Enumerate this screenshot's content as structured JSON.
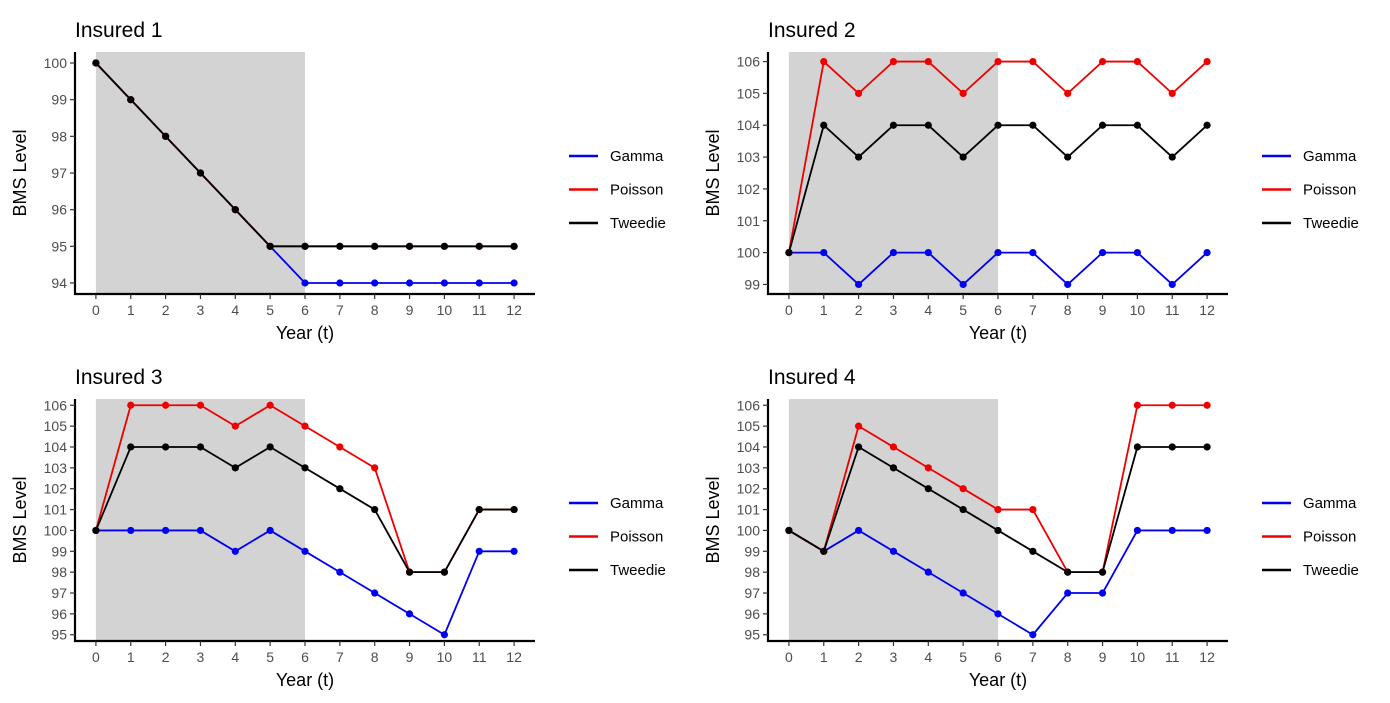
{
  "colors": {
    "Gamma": "#0000ee",
    "Poisson": "#ee0000",
    "Tweedie": "#000000",
    "shade": "#d3d3d3"
  },
  "legend": [
    "Gamma",
    "Poisson",
    "Tweedie"
  ],
  "chart_data": [
    {
      "type": "line",
      "title": "Insured 1",
      "xlabel": "Year (t)",
      "ylabel": "BMS Level",
      "x": [
        0,
        1,
        2,
        3,
        4,
        5,
        6,
        7,
        8,
        9,
        10,
        11,
        12
      ],
      "xlim": [
        0,
        12
      ],
      "ylim": [
        94,
        100
      ],
      "yticks": [
        94,
        95,
        96,
        97,
        98,
        99,
        100
      ],
      "shaded_x_range": [
        0,
        6
      ],
      "grid": false,
      "legend_position": "right",
      "series": [
        {
          "name": "Gamma",
          "values": [
            100,
            99,
            98,
            97,
            96,
            95,
            94,
            94,
            94,
            94,
            94,
            94,
            94
          ]
        },
        {
          "name": "Poisson",
          "values": [
            100,
            99,
            98,
            97,
            96,
            95,
            95,
            95,
            95,
            95,
            95,
            95,
            95
          ]
        },
        {
          "name": "Tweedie",
          "values": [
            100,
            99,
            98,
            97,
            96,
            95,
            95,
            95,
            95,
            95,
            95,
            95,
            95
          ]
        }
      ]
    },
    {
      "type": "line",
      "title": "Insured 2",
      "xlabel": "Year (t)",
      "ylabel": "BMS Level",
      "x": [
        0,
        1,
        2,
        3,
        4,
        5,
        6,
        7,
        8,
        9,
        10,
        11,
        12
      ],
      "xlim": [
        0,
        12
      ],
      "ylim": [
        99,
        106
      ],
      "yticks": [
        99,
        100,
        101,
        102,
        103,
        104,
        105,
        106
      ],
      "shaded_x_range": [
        0,
        6
      ],
      "grid": false,
      "legend_position": "right",
      "series": [
        {
          "name": "Gamma",
          "values": [
            100,
            100,
            99,
            100,
            100,
            99,
            100,
            100,
            99,
            100,
            100,
            99,
            100
          ]
        },
        {
          "name": "Poisson",
          "values": [
            100,
            106,
            105,
            106,
            106,
            105,
            106,
            106,
            105,
            106,
            106,
            105,
            106
          ]
        },
        {
          "name": "Tweedie",
          "values": [
            100,
            104,
            103,
            104,
            104,
            103,
            104,
            104,
            103,
            104,
            104,
            103,
            104
          ]
        }
      ]
    },
    {
      "type": "line",
      "title": "Insured 3",
      "xlabel": "Year (t)",
      "ylabel": "BMS Level",
      "x": [
        0,
        1,
        2,
        3,
        4,
        5,
        6,
        7,
        8,
        9,
        10,
        11,
        12
      ],
      "xlim": [
        0,
        12
      ],
      "ylim": [
        95,
        106
      ],
      "yticks": [
        95,
        96,
        97,
        98,
        99,
        100,
        101,
        102,
        103,
        104,
        105,
        106
      ],
      "shaded_x_range": [
        0,
        6
      ],
      "grid": false,
      "legend_position": "right",
      "series": [
        {
          "name": "Gamma",
          "values": [
            100,
            100,
            100,
            100,
            99,
            100,
            99,
            98,
            97,
            96,
            95,
            99,
            99
          ]
        },
        {
          "name": "Poisson",
          "values": [
            100,
            106,
            106,
            106,
            105,
            106,
            105,
            104,
            103,
            98,
            98,
            101,
            101
          ]
        },
        {
          "name": "Tweedie",
          "values": [
            100,
            104,
            104,
            104,
            103,
            104,
            103,
            102,
            101,
            98,
            98,
            101,
            101
          ]
        }
      ]
    },
    {
      "type": "line",
      "title": "Insured 4",
      "xlabel": "Year (t)",
      "ylabel": "BMS Level",
      "x": [
        0,
        1,
        2,
        3,
        4,
        5,
        6,
        7,
        8,
        9,
        10,
        11,
        12
      ],
      "xlim": [
        0,
        12
      ],
      "ylim": [
        95,
        106
      ],
      "yticks": [
        95,
        96,
        97,
        98,
        99,
        100,
        101,
        102,
        103,
        104,
        105,
        106
      ],
      "shaded_x_range": [
        0,
        6
      ],
      "grid": false,
      "legend_position": "right",
      "series": [
        {
          "name": "Gamma",
          "values": [
            100,
            99,
            100,
            99,
            98,
            97,
            96,
            95,
            97,
            97,
            100,
            100,
            100
          ]
        },
        {
          "name": "Poisson",
          "values": [
            100,
            99,
            105,
            104,
            103,
            102,
            101,
            101,
            98,
            98,
            106,
            106,
            106
          ]
        },
        {
          "name": "Tweedie",
          "values": [
            100,
            99,
            104,
            103,
            102,
            101,
            100,
            99,
            98,
            98,
            104,
            104,
            104
          ]
        }
      ]
    }
  ]
}
